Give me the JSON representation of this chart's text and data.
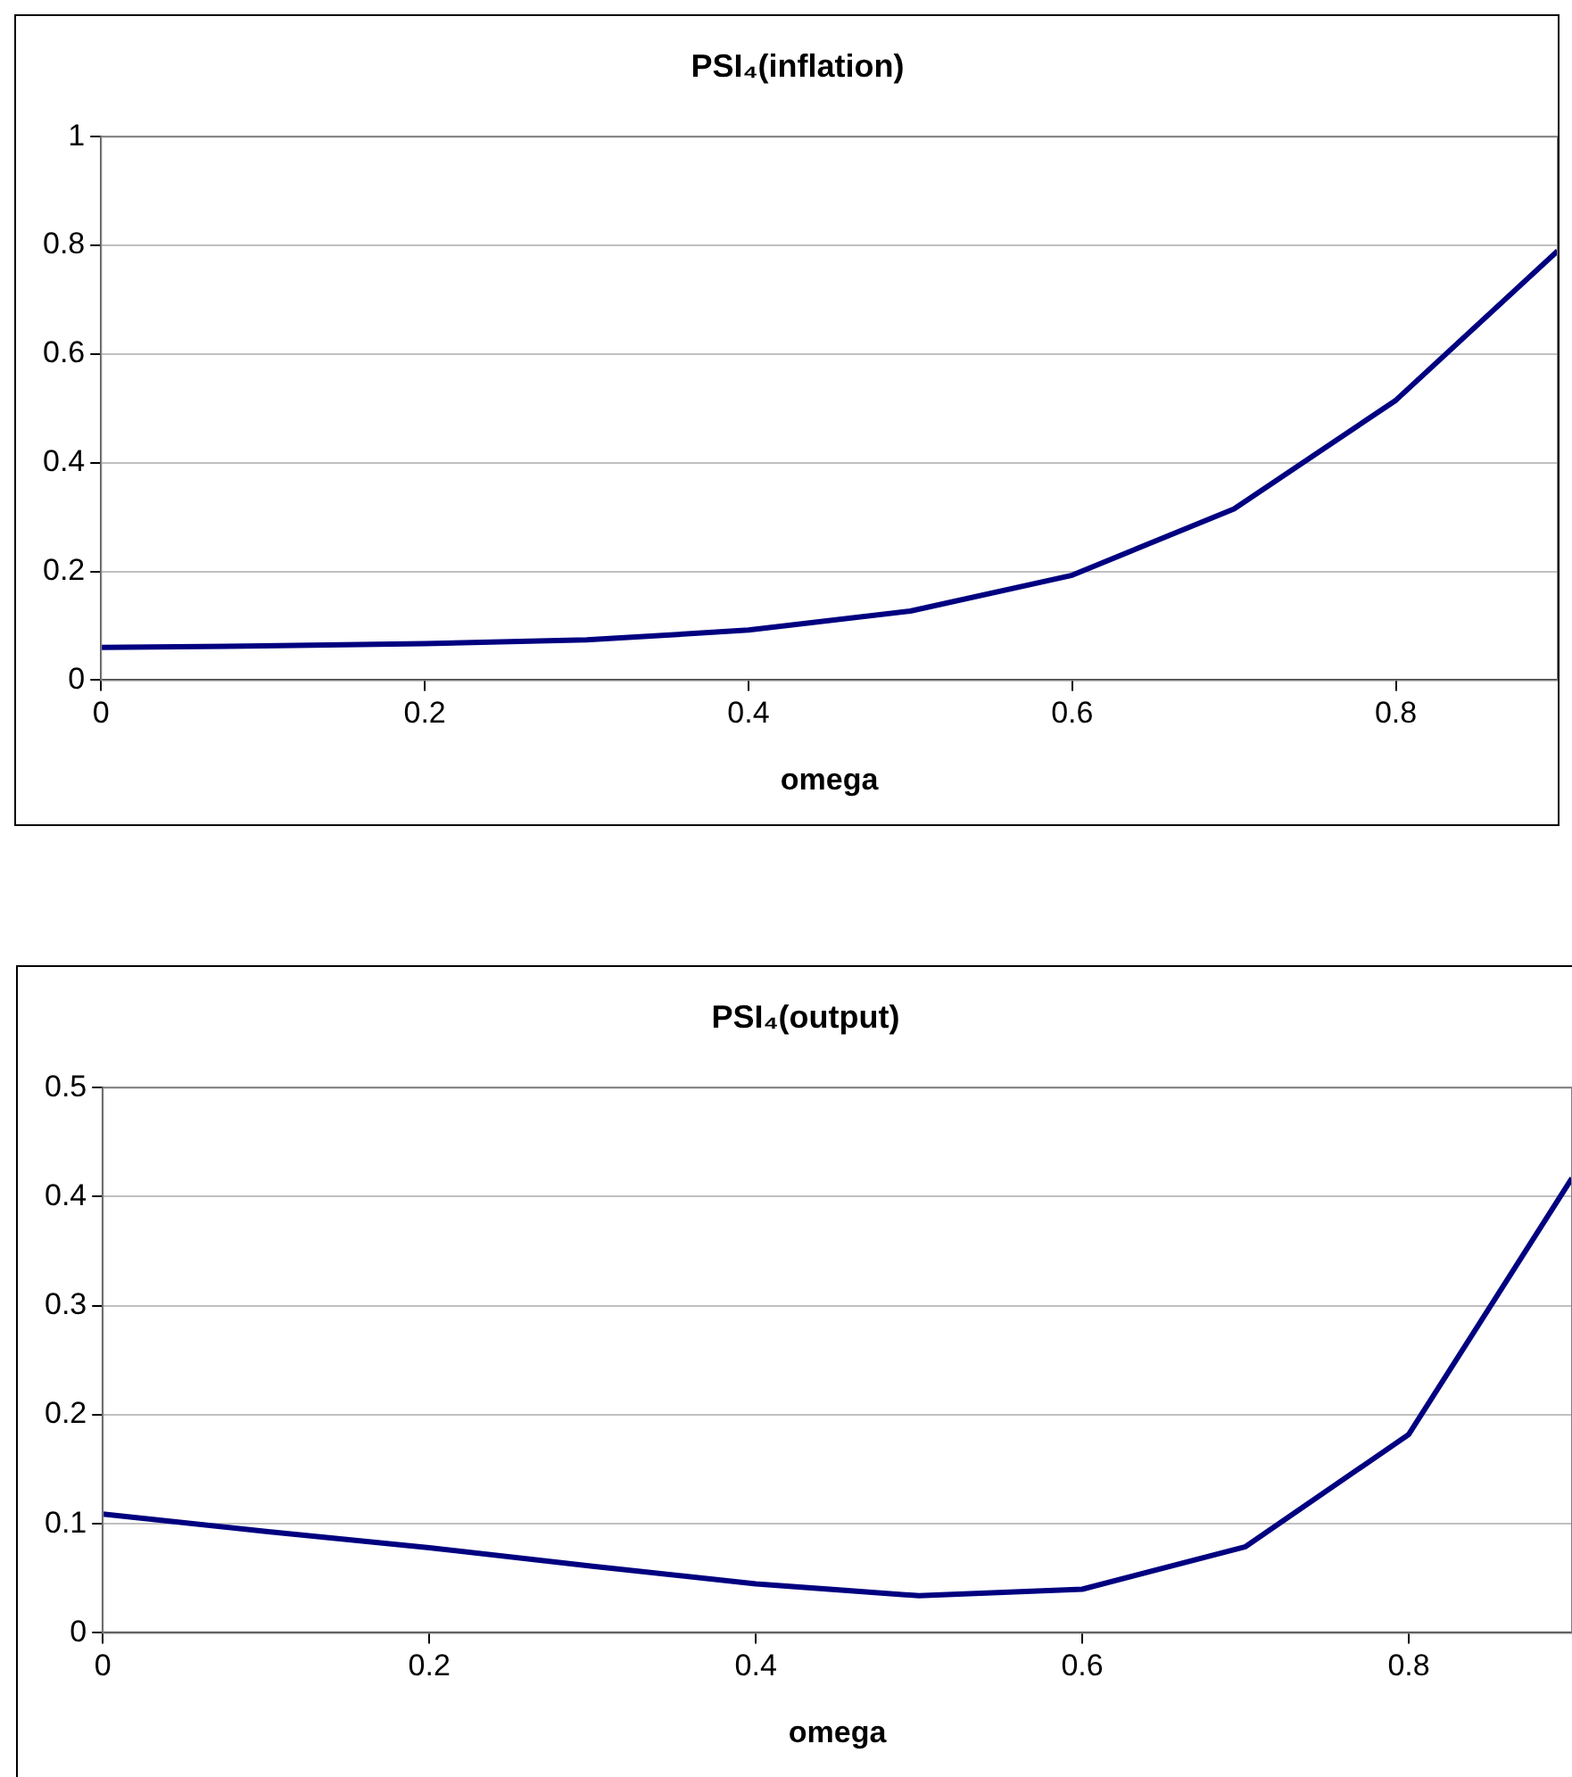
{
  "chart_data": [
    {
      "type": "line",
      "title": "PSI₄(inflation)",
      "xlabel": "omega",
      "x": [
        0,
        0.1,
        0.2,
        0.3,
        0.4,
        0.5,
        0.6,
        0.7,
        0.8,
        0.9
      ],
      "series": [
        {
          "color": "#000080",
          "values": [
            0.06,
            0.063,
            0.067,
            0.074,
            0.092,
            0.127,
            0.193,
            0.315,
            0.515,
            0.79
          ]
        }
      ],
      "xlim": [
        0,
        0.9
      ],
      "xticks": [
        0,
        0.2,
        0.4,
        0.6,
        0.8
      ],
      "ylim": [
        0,
        1
      ],
      "yticks": [
        0,
        0.2,
        0.4,
        0.6,
        0.8,
        1
      ],
      "grid": "y",
      "legend": false,
      "marker": "none",
      "line_style": "solid"
    },
    {
      "type": "line",
      "title": "PSI₄(output)",
      "xlabel": "omega",
      "x": [
        0,
        0.1,
        0.2,
        0.3,
        0.4,
        0.5,
        0.6,
        0.7,
        0.8,
        0.9
      ],
      "series": [
        {
          "color": "#000080",
          "values": [
            0.109,
            0.093,
            0.078,
            0.061,
            0.045,
            0.034,
            0.04,
            0.079,
            0.182,
            0.417
          ]
        }
      ],
      "xlim": [
        0,
        0.9
      ],
      "xticks": [
        0,
        0.2,
        0.4,
        0.6,
        0.8
      ],
      "ylim": [
        0,
        0.5
      ],
      "yticks": [
        0,
        0.1,
        0.2,
        0.3,
        0.4,
        0.5
      ],
      "grid": "y",
      "legend": false,
      "marker": "none",
      "line_style": "solid"
    }
  ]
}
